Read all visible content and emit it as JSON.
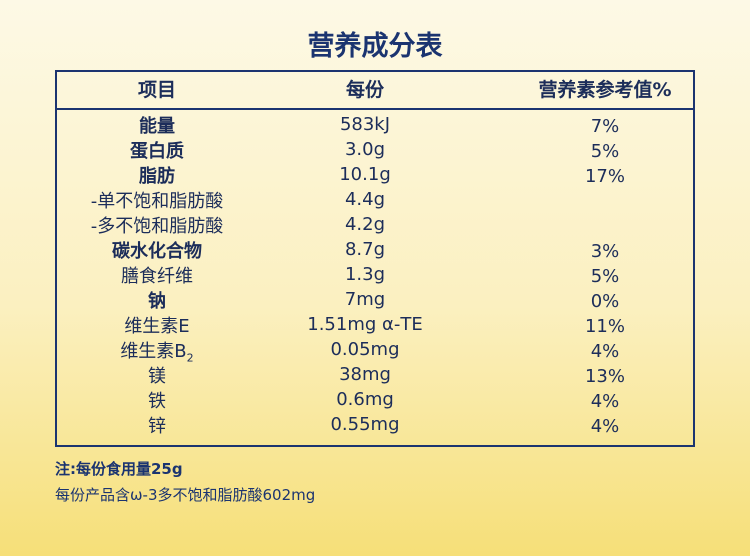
{
  "header": {
    "title": "营养成分表"
  },
  "table": {
    "columns": [
      "项目",
      "每份",
      "营养素参考值%"
    ],
    "rows": [
      {
        "item": "能量",
        "bold": true,
        "per_serving": "583kJ",
        "nrv": "7%"
      },
      {
        "item": "蛋白质",
        "bold": true,
        "per_serving": "3.0g",
        "nrv": "5%"
      },
      {
        "item": "脂肪",
        "bold": true,
        "per_serving": "10.1g",
        "nrv": "17%"
      },
      {
        "item": "-单不饱和脂肪酸",
        "per_serving": "4.4g"
      },
      {
        "item": "-多不饱和脂肪酸",
        "per_serving": "4.2g"
      },
      {
        "item": "碳水化合物",
        "bold": true,
        "per_serving": "8.7g",
        "nrv": "3%"
      },
      {
        "item": "膳食纤维",
        "per_serving": "1.3g",
        "nrv": "5%"
      },
      {
        "item": "钠",
        "bold": true,
        "per_serving": "7mg",
        "nrv": "0%"
      },
      {
        "item": "维生素E",
        "per_serving": "1.51mg α-TE",
        "nrv": "11%"
      },
      {
        "item": "维生素B",
        "item_subscript": "2",
        "per_serving": "0.05mg",
        "nrv": "4%"
      },
      {
        "item": "镁",
        "per_serving": "38mg",
        "nrv": "13%"
      },
      {
        "item": "铁",
        "per_serving": "0.6mg",
        "nrv": "4%"
      },
      {
        "item": "锌",
        "per_serving": "0.55mg",
        "nrv": "4%"
      }
    ]
  },
  "notes": [
    "注:每份食用量25g",
    "每份产品含ω-3多不饱和脂肪酸602mg"
  ]
}
